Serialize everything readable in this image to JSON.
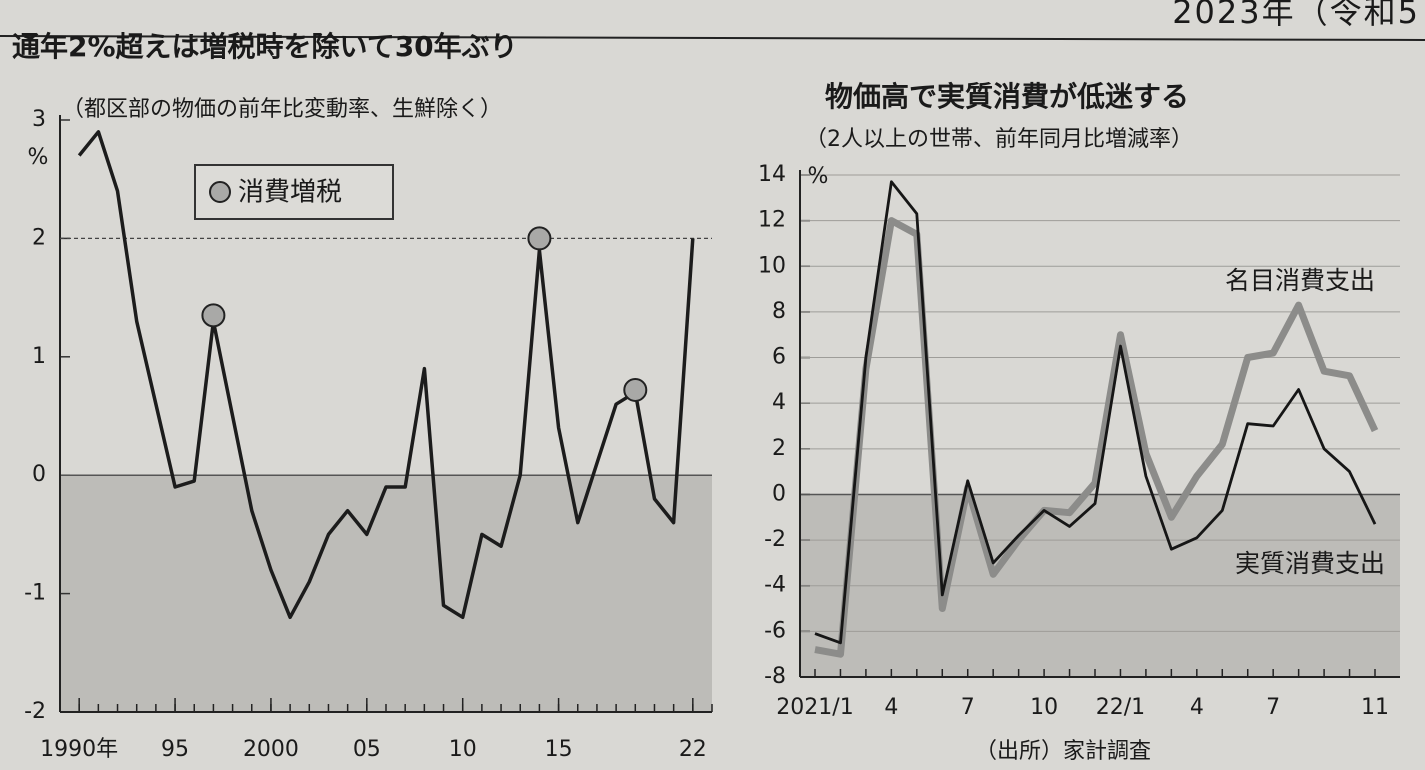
{
  "header": "2023年（令和5",
  "chart_data": [
    {
      "type": "line",
      "title": "通年2%超えは増税時を除いて30年ぶり",
      "subtitle": "（都区部の物価の前年比変動率、生鮮除く）",
      "y_unit": "%",
      "x": [
        1990,
        1991,
        1992,
        1993,
        1994,
        1995,
        1996,
        1997,
        1998,
        1999,
        2000,
        2001,
        2002,
        2003,
        2004,
        2005,
        2006,
        2007,
        2008,
        2009,
        2010,
        2011,
        2012,
        2013,
        2014,
        2015,
        2016,
        2017,
        2018,
        2019,
        2020,
        2021,
        2022
      ],
      "values": [
        2.7,
        2.9,
        2.4,
        1.3,
        0.6,
        -0.1,
        -0.05,
        1.3,
        0.5,
        -0.3,
        -0.8,
        -1.2,
        -0.9,
        -0.5,
        -0.3,
        -0.5,
        -0.1,
        -0.1,
        0.9,
        -1.1,
        -1.2,
        -0.5,
        -0.6,
        0.0,
        1.9,
        0.4,
        -0.4,
        0.1,
        0.6,
        0.7,
        -0.2,
        -0.4,
        2.0
      ],
      "color": "#1c1c1c",
      "xlim": [
        1989,
        2023
      ],
      "xticks": [
        {
          "value": 1990,
          "label": "1990年"
        },
        {
          "value": 1995,
          "label": "95"
        },
        2000,
        {
          "value": 2005,
          "label": "05"
        },
        {
          "value": 2010,
          "label": "10"
        },
        {
          "value": 2015,
          "label": "15"
        },
        {
          "value": 2022,
          "label": "22"
        }
      ],
      "ylim": [
        -2,
        3
      ],
      "yticks": [
        -2,
        -1,
        0,
        1,
        2,
        3
      ],
      "reference_line": 2,
      "markers": {
        "name": "消費増税",
        "x": [
          1997,
          2014,
          2019
        ],
        "values": [
          1.35,
          2.0,
          0.72
        ],
        "color": "#a9a9a7"
      }
    },
    {
      "type": "line",
      "title": "物価高で実質消費が低迷する",
      "subtitle": "（2人以上の世帯、前年同月比増減率）",
      "y_unit": "%",
      "categories": [
        "2021/1",
        null,
        null,
        "4",
        null,
        null,
        "7",
        null,
        null,
        "10",
        null,
        null,
        "22/1",
        null,
        null,
        "4",
        null,
        null,
        "7",
        null,
        null,
        null,
        "11"
      ],
      "series": [
        {
          "name": "名目消費支出",
          "color": "#8c8c8a",
          "values": [
            -6.8,
            -7.0,
            5.5,
            12.0,
            11.4,
            -5.0,
            0.3,
            -3.5,
            -2.0,
            -0.7,
            -0.8,
            0.5,
            7.0,
            1.8,
            -1.0,
            0.8,
            2.2,
            6.0,
            6.2,
            8.3,
            5.4,
            5.2,
            2.8
          ]
        },
        {
          "name": "実質消費支出",
          "color": "#161616",
          "values": [
            -6.1,
            -6.5,
            6.0,
            13.7,
            12.3,
            -4.4,
            0.6,
            -3.0,
            -1.8,
            -0.7,
            -1.4,
            -0.4,
            6.5,
            0.8,
            -2.4,
            -1.9,
            -0.7,
            3.1,
            3.0,
            4.6,
            2.0,
            1.0,
            -1.3
          ]
        }
      ],
      "ylim": [
        -8,
        14
      ],
      "yticks": [
        -8,
        -6,
        -4,
        -2,
        0,
        2,
        4,
        6,
        8,
        10,
        12,
        14
      ],
      "grid": true,
      "source": "（出所）家計調査"
    }
  ]
}
